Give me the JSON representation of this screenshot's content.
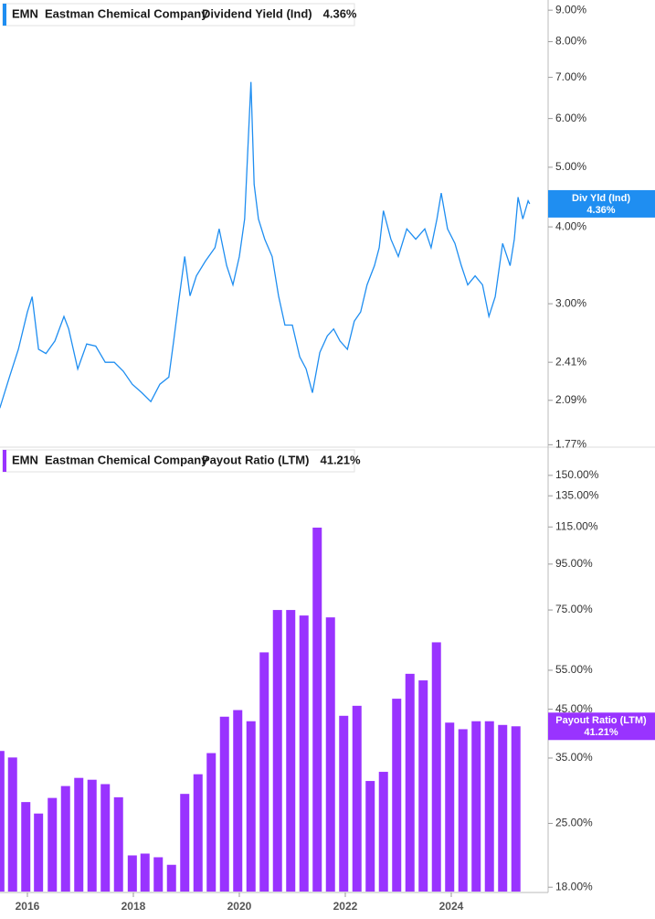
{
  "chart_data": [
    {
      "type": "line",
      "ticker": "EMN",
      "company": "Eastman Chemical Company",
      "value_label": "4.36%",
      "flag_label": "Div Yld (Ind)",
      "x": [
        2015.48,
        2015.66,
        2015.83,
        2016.0,
        2016.09,
        2016.21,
        2016.35,
        2016.52,
        2016.69,
        2016.78,
        2016.95,
        2017.12,
        2017.29,
        2017.47,
        2017.64,
        2017.81,
        2017.98,
        2018.16,
        2018.33,
        2018.5,
        2018.67,
        2018.76,
        2018.85,
        2018.97,
        2019.07,
        2019.19,
        2019.36,
        2019.54,
        2019.62,
        2019.76,
        2019.88,
        2020.0,
        2020.1,
        2020.17,
        2020.22,
        2020.28,
        2020.36,
        2020.48,
        2020.62,
        2020.74,
        2020.86,
        2021.0,
        2021.14,
        2021.26,
        2021.38,
        2021.52,
        2021.66,
        2021.78,
        2021.9,
        2022.04,
        2022.17,
        2022.29,
        2022.41,
        2022.55,
        2022.64,
        2022.72,
        2022.86,
        2023.0,
        2023.16,
        2023.33,
        2023.5,
        2023.62,
        2023.73,
        2023.81,
        2023.93,
        2024.07,
        2024.19,
        2024.31,
        2024.45,
        2024.59,
        2024.71,
        2024.83,
        2024.97,
        2025.11,
        2025.19,
        2025.26,
        2025.35,
        2025.45,
        2025.48
      ],
      "series": [
        {
          "name": "Dividend Yield (Ind)",
          "color": "#1f8ef1",
          "values": [
            2.03,
            2.28,
            2.53,
            2.91,
            3.08,
            2.53,
            2.49,
            2.61,
            2.86,
            2.73,
            2.35,
            2.58,
            2.56,
            2.41,
            2.41,
            2.33,
            2.22,
            2.15,
            2.08,
            2.22,
            2.28,
            2.61,
            3.0,
            3.58,
            3.09,
            3.33,
            3.52,
            3.7,
            3.97,
            3.46,
            3.22,
            3.58,
            4.12,
            5.55,
            6.88,
            4.69,
            4.12,
            3.82,
            3.58,
            3.09,
            2.77,
            2.77,
            2.46,
            2.35,
            2.15,
            2.5,
            2.66,
            2.73,
            2.61,
            2.53,
            2.81,
            2.91,
            3.22,
            3.46,
            3.7,
            4.25,
            3.82,
            3.58,
            3.97,
            3.82,
            3.97,
            3.7,
            4.12,
            4.54,
            3.97,
            3.76,
            3.46,
            3.22,
            3.33,
            3.22,
            2.86,
            3.08,
            3.76,
            3.46,
            3.82,
            4.47,
            4.12,
            4.41,
            4.36
          ]
        }
      ],
      "xlim": [
        2015.483,
        2025.828
      ],
      "ylim": [
        1.76,
        9.35
      ],
      "log_scale": true,
      "yticks": [
        {
          "value": 9,
          "label": "9.00%"
        },
        {
          "value": 8,
          "label": "8.00%"
        },
        {
          "value": 7,
          "label": "7.00%"
        },
        {
          "value": 6,
          "label": "6.00%"
        },
        {
          "value": 5,
          "label": "5.00%"
        },
        {
          "value": 4,
          "label": "4.00%"
        },
        {
          "value": 3,
          "label": "3.00%"
        },
        {
          "value": 2.41,
          "label": "2.41%"
        },
        {
          "value": 2.09,
          "label": "2.09%"
        },
        {
          "value": 1.77,
          "label": "1.77%"
        }
      ]
    },
    {
      "type": "bar",
      "ticker": "EMN",
      "company": "Eastman Chemical Company",
      "value_label": "41.21%",
      "flag_label": "Payout Ratio (LTM)",
      "x": [
        2015.48,
        2015.72,
        2015.97,
        2016.21,
        2016.47,
        2016.72,
        2016.97,
        2017.22,
        2017.47,
        2017.72,
        2017.98,
        2018.22,
        2018.47,
        2018.72,
        2018.97,
        2019.22,
        2019.47,
        2019.72,
        2019.97,
        2020.22,
        2020.47,
        2020.72,
        2020.97,
        2021.22,
        2021.47,
        2021.72,
        2021.97,
        2022.22,
        2022.47,
        2022.72,
        2022.97,
        2023.22,
        2023.47,
        2023.72,
        2023.97,
        2024.22,
        2024.47,
        2024.72,
        2024.97,
        2025.22
      ],
      "series": [
        {
          "name": "Payout Ratio (LTM)",
          "color": "#9933ff",
          "values": [
            36.3,
            35.1,
            27.9,
            26.3,
            28.5,
            30.3,
            31.6,
            31.3,
            30.6,
            28.6,
            21.2,
            21.4,
            21.0,
            20.2,
            29.1,
            32.2,
            35.9,
            43.3,
            44.8,
            42.3,
            60.3,
            75.0,
            75.0,
            72.9,
            114.6,
            72.2,
            43.5,
            45.8,
            31.1,
            32.6,
            47.5,
            54.0,
            52.2,
            63.5,
            42.0,
            40.6,
            42.3,
            42.3,
            41.5,
            41.21
          ]
        }
      ],
      "xlim": [
        2015.483,
        2025.828
      ],
      "xticks": [
        2016,
        2018,
        2020,
        2022,
        2024
      ],
      "ylim": [
        17.6,
        171
      ],
      "log_scale": true,
      "yticks": [
        {
          "value": 150,
          "label": "150.00%"
        },
        {
          "value": 135,
          "label": "135.00%"
        },
        {
          "value": 115,
          "label": "115.00%"
        },
        {
          "value": 95,
          "label": "95.00%"
        },
        {
          "value": 75,
          "label": "75.00%"
        },
        {
          "value": 55,
          "label": "55.00%"
        },
        {
          "value": 45,
          "label": "45.00%"
        },
        {
          "value": 35,
          "label": "35.00%"
        },
        {
          "value": 25,
          "label": "25.00%"
        },
        {
          "value": 18,
          "label": "18.00%"
        }
      ]
    }
  ]
}
